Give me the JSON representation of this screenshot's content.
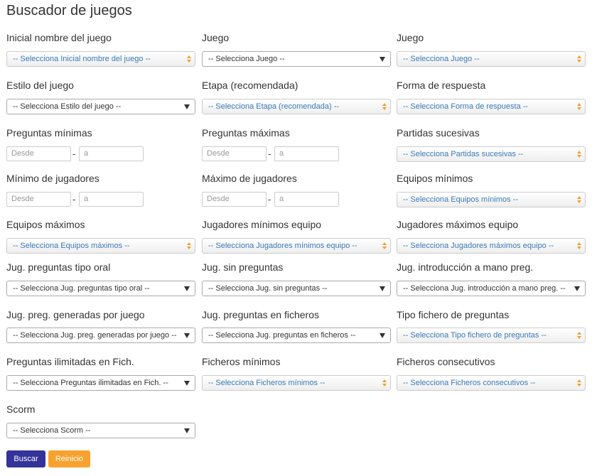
{
  "header": {
    "title": "Buscador de juegos"
  },
  "form": {
    "fields": [
      {
        "label": "Inicial nombre del juego",
        "style": "styled",
        "placeholder": "-- Selecciona Inicial nombre del juego --"
      },
      {
        "label": "Juego",
        "style": "native",
        "placeholder": "-- Selecciona Juego --"
      },
      {
        "label": "Juego",
        "style": "styled",
        "placeholder": "-- Selecciona Juego --"
      },
      {
        "label": "Estilo del juego",
        "style": "native",
        "placeholder": "-- Selecciona Estilo del juego --"
      },
      {
        "label": "Etapa (recomendada)",
        "style": "styled",
        "placeholder": "-- Selecciona Etapa (recomendada) --"
      },
      {
        "label": "Forma de respuesta",
        "style": "styled",
        "placeholder": "-- Selecciona Forma de respuesta --"
      },
      {
        "label": "Preguntas mínimas",
        "style": "range",
        "from": "Desde",
        "separator": "-",
        "to": "a"
      },
      {
        "label": "Preguntas máximas",
        "style": "range",
        "from": "Desde",
        "separator": "-",
        "to": "a"
      },
      {
        "label": "Partidas sucesivas",
        "style": "styled",
        "placeholder": "-- Selecciona Partidas sucesivas --"
      },
      {
        "label": "Mínimo de jugadores",
        "style": "range",
        "from": "Desde",
        "separator": "-",
        "to": "a"
      },
      {
        "label": "Máximo de jugadores",
        "style": "range",
        "from": "Desde",
        "separator": "-",
        "to": "a"
      },
      {
        "label": "Equipos mínimos",
        "style": "styled",
        "placeholder": "-- Selecciona Equipos mínimos --"
      },
      {
        "label": "Equipos máximos",
        "style": "styled",
        "placeholder": "-- Selecciona Equipos máximos --"
      },
      {
        "label": "Jugadores mínimos equipo",
        "style": "styled",
        "placeholder": "-- Selecciona Jugadores mínimos equipo --"
      },
      {
        "label": "Jugadores máximos equipo",
        "style": "styled",
        "placeholder": "-- Selecciona Jugadores máximos equipo --"
      },
      {
        "label": "Jug. preguntas tipo oral",
        "style": "native",
        "placeholder": "-- Selecciona Jug. preguntas tipo oral --"
      },
      {
        "label": "Jug. sin preguntas",
        "style": "native",
        "placeholder": "-- Selecciona Jug. sin preguntas --"
      },
      {
        "label": "Jug. introducción a mano preg.",
        "style": "native",
        "placeholder": "-- Selecciona Jug. introducción a mano preg. --"
      },
      {
        "label": "Jug. preg. generadas por juego",
        "style": "native",
        "placeholder": "-- Selecciona Jug. preg. generadas por juego --"
      },
      {
        "label": "Jug. preguntas en ficheros",
        "style": "native",
        "placeholder": "-- Selecciona Jug. preguntas en ficheros --"
      },
      {
        "label": "Tipo fichero de preguntas",
        "style": "styled",
        "placeholder": "-- Selecciona Tipo fichero de preguntas --"
      },
      {
        "label": "Preguntas ilimitadas en Fich.",
        "style": "native",
        "placeholder": "-- Selecciona Preguntas ilimitadas en Fich. --"
      },
      {
        "label": "Ficheros mínimos",
        "style": "styled",
        "placeholder": "-- Selecciona Ficheros mínimos --"
      },
      {
        "label": "Ficheros consecutivos",
        "style": "styled",
        "placeholder": "-- Selecciona Ficheros consecutivos --"
      },
      {
        "label": "Scorm",
        "style": "native",
        "placeholder": "-- Selecciona Scorm --"
      }
    ]
  },
  "buttons": [
    {
      "label": "Buscar",
      "color": "#33339a"
    },
    {
      "label": "Reinicio",
      "color": "#f7a22e"
    }
  ]
}
